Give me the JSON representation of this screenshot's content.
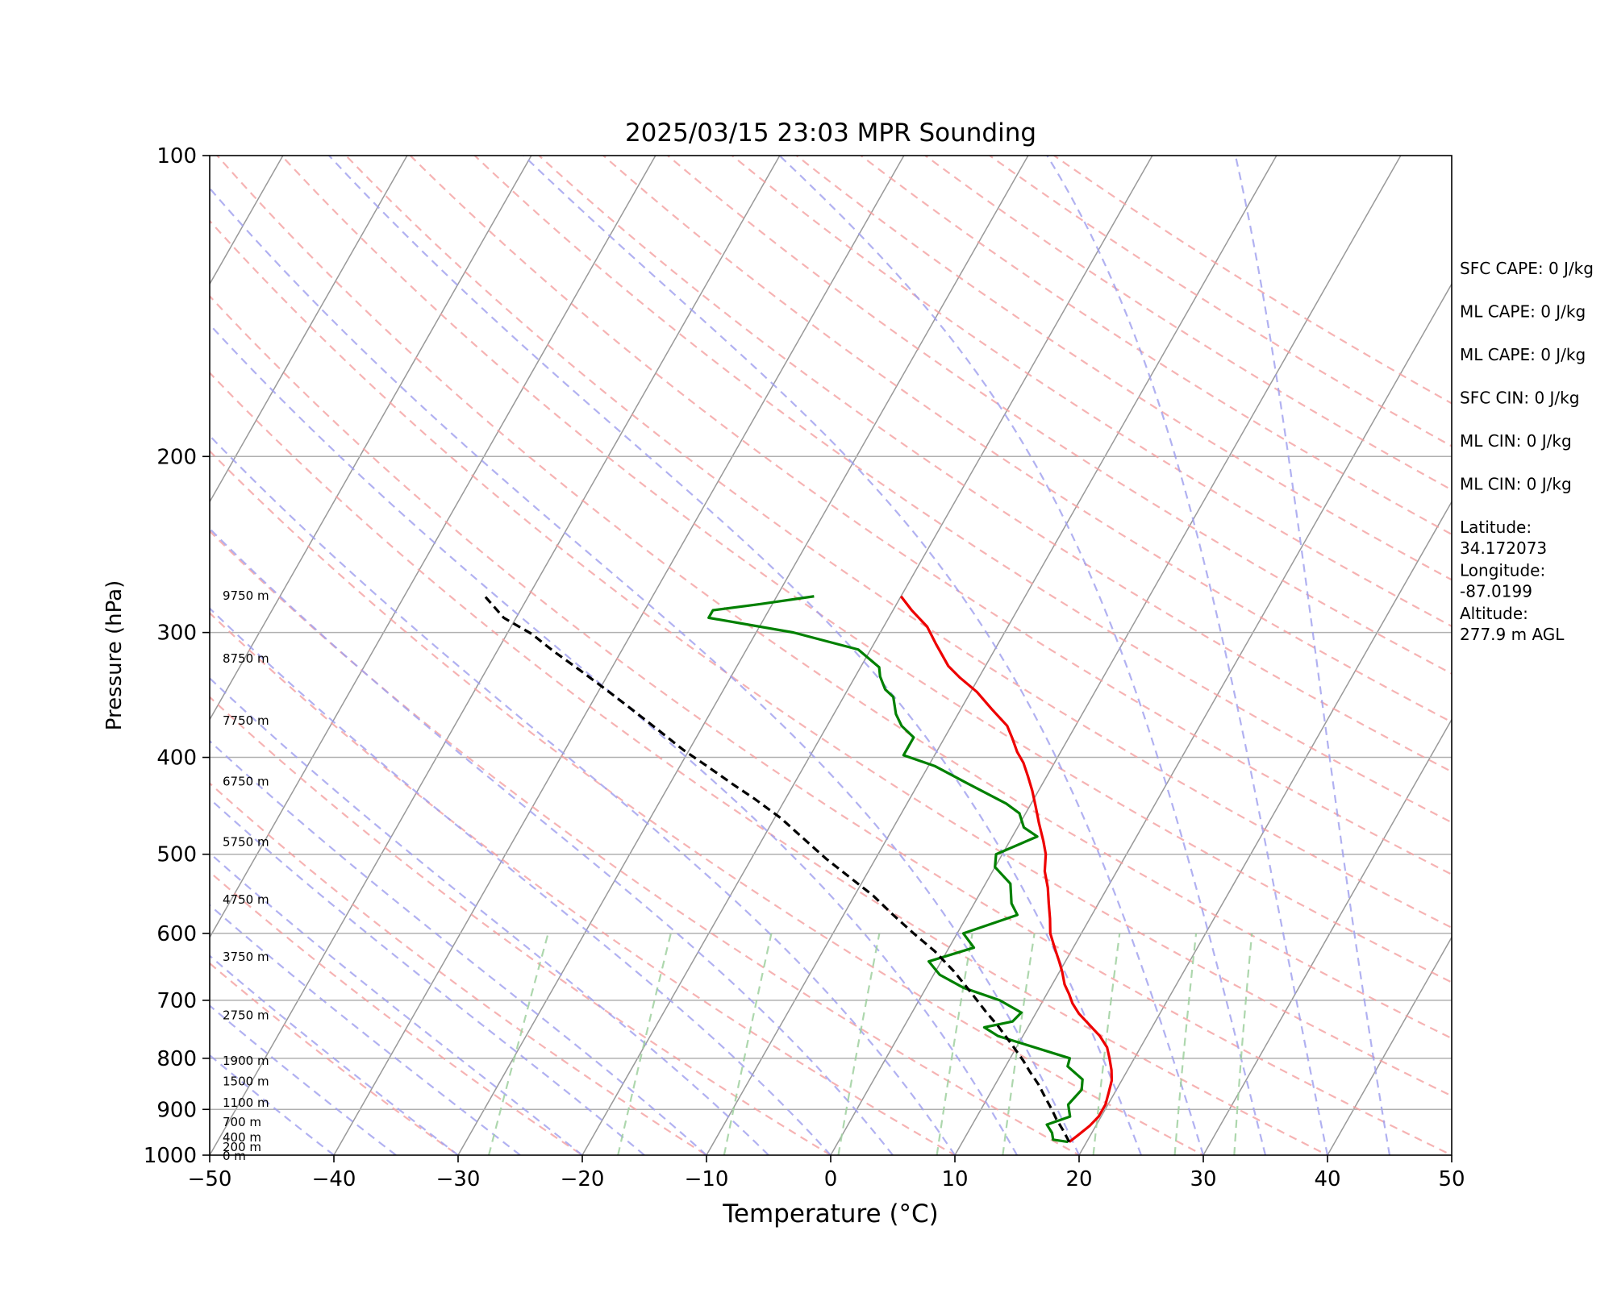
{
  "chart_data": {
    "type": "line",
    "title": "2025/03/15 23:03 MPR Sounding",
    "xlabel": "Temperature (°C)",
    "ylabel": "Pressure (hPa)",
    "xlim": [
      -50,
      50
    ],
    "ylim": [
      1000,
      100
    ],
    "y_scale": "log",
    "skew": "skew-T log-p",
    "grid": true,
    "x_ticks": [
      "−50",
      "−40",
      "−30",
      "−20",
      "−10",
      "0",
      "10",
      "20",
      "30",
      "40",
      "50"
    ],
    "x_tick_values": [
      -50,
      -40,
      -30,
      -20,
      -10,
      0,
      10,
      20,
      30,
      40,
      50
    ],
    "y_ticks": [
      "100",
      "200",
      "300",
      "400",
      "500",
      "600",
      "700",
      "800",
      "900",
      "1000"
    ],
    "y_tick_values": [
      100,
      200,
      300,
      400,
      500,
      600,
      700,
      800,
      900,
      1000
    ],
    "height_labels": [
      {
        "p": 1000,
        "text": "0 m"
      },
      {
        "p": 980,
        "text": "200 m"
      },
      {
        "p": 958,
        "text": "400 m"
      },
      {
        "p": 925,
        "text": "700 m"
      },
      {
        "p": 885,
        "text": "1100 m"
      },
      {
        "p": 842,
        "text": "1500 m"
      },
      {
        "p": 803,
        "text": "1900 m"
      },
      {
        "p": 723,
        "text": "2750 m"
      },
      {
        "p": 632,
        "text": "3750 m"
      },
      {
        "p": 554,
        "text": "4750 m"
      },
      {
        "p": 485,
        "text": "5750 m"
      },
      {
        "p": 422,
        "text": "6750 m"
      },
      {
        "p": 367,
        "text": "7750 m"
      },
      {
        "p": 318,
        "text": "8750 m"
      },
      {
        "p": 275,
        "text": "9750 m"
      }
    ],
    "series": [
      {
        "name": "temperature",
        "color": "#ee0000",
        "points": [
          [
            18.6,
            970
          ],
          [
            19.0,
            955
          ],
          [
            19.5,
            935
          ],
          [
            19.8,
            915
          ],
          [
            19.8,
            890
          ],
          [
            19.5,
            865
          ],
          [
            19.2,
            842
          ],
          [
            18.7,
            822
          ],
          [
            18.0,
            800
          ],
          [
            17.3,
            780
          ],
          [
            16.2,
            760
          ],
          [
            14.8,
            740
          ],
          [
            13.5,
            722
          ],
          [
            12.5,
            705
          ],
          [
            11.8,
            690
          ],
          [
            11.0,
            675
          ],
          [
            10.2,
            655
          ],
          [
            9.5,
            640
          ],
          [
            8.5,
            620
          ],
          [
            7.5,
            600
          ],
          [
            6.8,
            580
          ],
          [
            6.0,
            560
          ],
          [
            5.2,
            540
          ],
          [
            4.2,
            520
          ],
          [
            3.5,
            500
          ],
          [
            2.7,
            485
          ],
          [
            1.5,
            465
          ],
          [
            0.5,
            448
          ],
          [
            -0.5,
            432
          ],
          [
            -1.5,
            418
          ],
          [
            -2.5,
            405
          ],
          [
            -3.5,
            395
          ],
          [
            -4.5,
            383
          ],
          [
            -5.5,
            372
          ],
          [
            -7.5,
            358
          ],
          [
            -9.5,
            344
          ],
          [
            -11.5,
            333
          ],
          [
            -13.0,
            324
          ],
          [
            -15.0,
            308
          ],
          [
            -16.5,
            296
          ],
          [
            -18.5,
            285
          ],
          [
            -20.0,
            276
          ]
        ]
      },
      {
        "name": "dewpoint",
        "color": "#008000",
        "points": [
          [
            18.5,
            970
          ],
          [
            17.2,
            965
          ],
          [
            16.8,
            950
          ],
          [
            16.0,
            932
          ],
          [
            17.5,
            915
          ],
          [
            16.8,
            890
          ],
          [
            17.2,
            860
          ],
          [
            16.8,
            840
          ],
          [
            15.0,
            815
          ],
          [
            14.8,
            800
          ],
          [
            8.0,
            760
          ],
          [
            6.5,
            745
          ],
          [
            8.5,
            735
          ],
          [
            8.8,
            720
          ],
          [
            6.5,
            700
          ],
          [
            3.0,
            680
          ],
          [
            0.5,
            660
          ],
          [
            -1.0,
            640
          ],
          [
            2.0,
            620
          ],
          [
            0.5,
            600
          ],
          [
            4.0,
            575
          ],
          [
            3.0,
            560
          ],
          [
            2.0,
            535
          ],
          [
            0.0,
            515
          ],
          [
            -0.5,
            500
          ],
          [
            2.0,
            480
          ],
          [
            0.5,
            470
          ],
          [
            -0.5,
            455
          ],
          [
            -2.0,
            445
          ],
          [
            -6.0,
            425
          ],
          [
            -9.5,
            408
          ],
          [
            -12.5,
            398
          ],
          [
            -12.5,
            390
          ],
          [
            -12.5,
            382
          ],
          [
            -14.0,
            372
          ],
          [
            -15.0,
            362
          ],
          [
            -16.0,
            348
          ],
          [
            -17.0,
            342
          ],
          [
            -18.0,
            332
          ],
          [
            -18.5,
            325
          ],
          [
            -21.0,
            312
          ],
          [
            -27.0,
            300
          ],
          [
            -34.5,
            290
          ],
          [
            -34.5,
            285
          ],
          [
            -31.0,
            281
          ],
          [
            -27.0,
            276
          ]
        ]
      },
      {
        "name": "parcel",
        "color": "#000000",
        "dashed": true,
        "points": [
          [
            18.6,
            970
          ],
          [
            17.6,
            945
          ],
          [
            16.5,
            920
          ],
          [
            15.7,
            900
          ],
          [
            14.6,
            875
          ],
          [
            13.5,
            850
          ],
          [
            12.2,
            825
          ],
          [
            11.2,
            805
          ],
          [
            9.5,
            775
          ],
          [
            7.5,
            742
          ],
          [
            6.0,
            720
          ],
          [
            4.0,
            690
          ],
          [
            1.5,
            655
          ],
          [
            -1.0,
            625
          ],
          [
            -3.5,
            600
          ],
          [
            -6.0,
            575
          ],
          [
            -8.5,
            550
          ],
          [
            -11.5,
            525
          ],
          [
            -14.0,
            505
          ],
          [
            -17.0,
            480
          ],
          [
            -19.5,
            460
          ],
          [
            -22.5,
            440
          ],
          [
            -25.0,
            425
          ],
          [
            -27.5,
            410
          ],
          [
            -30.5,
            393
          ],
          [
            -33.5,
            375
          ],
          [
            -36.5,
            358
          ],
          [
            -39.5,
            342
          ],
          [
            -42.5,
            327
          ],
          [
            -45.5,
            313
          ],
          [
            -48.0,
            301
          ],
          [
            -51.0,
            290
          ],
          [
            -53.5,
            276
          ]
        ]
      }
    ]
  },
  "stats": [
    {
      "text": "SFC CAPE: 0 J/kg"
    },
    {
      "text": "ML CAPE: 0 J/kg"
    },
    {
      "text": "ML CAPE: 0 J/kg"
    },
    {
      "text": "SFC CIN: 0 J/kg"
    },
    {
      "text": "ML CIN: 0 J/kg"
    },
    {
      "text": "ML CIN: 0 J/kg"
    },
    {
      "lines": [
        "Latitude:",
        "34.172073"
      ]
    },
    {
      "lines": [
        "Longitude:",
        "-87.0199"
      ]
    },
    {
      "lines": [
        "Altitude:",
        "277.9 m AGL"
      ]
    }
  ],
  "colors": {
    "temperature": "#ee0000",
    "dewpoint": "#008000",
    "parcel": "#000000",
    "dry_adiabat": "#f4a0a0",
    "moist_adiabat": "#9d9dee",
    "mixing_ratio": "#9fd09f",
    "isotherm": "#999999",
    "isobar": "#b0b0b0"
  }
}
